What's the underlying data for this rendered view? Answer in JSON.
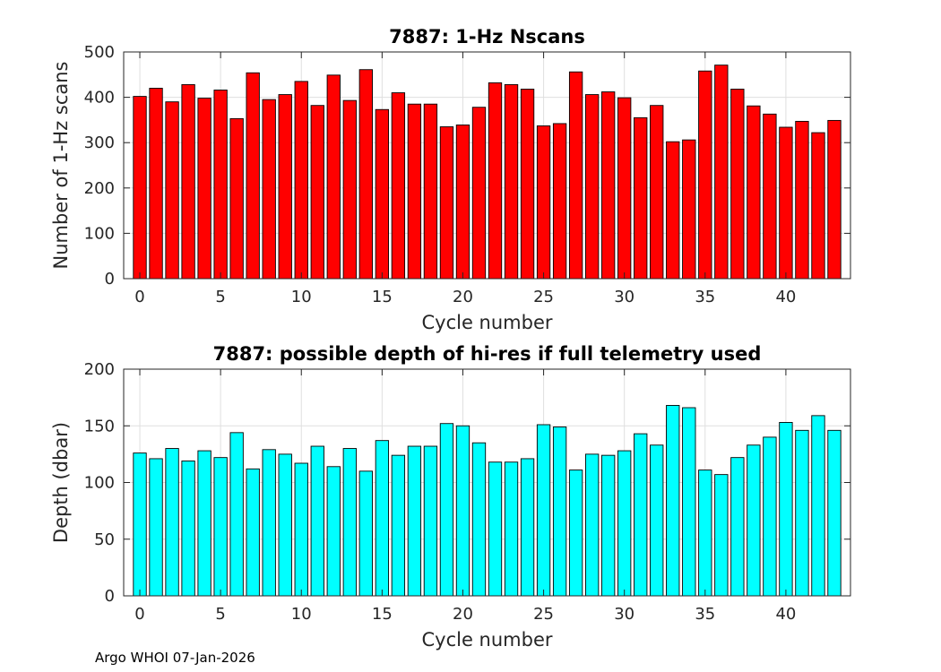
{
  "chart_data": [
    {
      "type": "bar",
      "title": "7887: 1-Hz Nscans",
      "xlabel": "Cycle number",
      "ylabel": "Number of 1-Hz scans",
      "ylim": [
        0,
        500
      ],
      "xlim": [
        -1,
        44
      ],
      "grid": true,
      "bar_color": "#ff0000",
      "yticks": [
        "0",
        "100",
        "200",
        "300",
        "400",
        "500"
      ],
      "xticks": [
        "0",
        "5",
        "10",
        "15",
        "20",
        "25",
        "30",
        "35",
        "40"
      ],
      "x": [
        0,
        1,
        2,
        3,
        4,
        5,
        6,
        7,
        8,
        9,
        10,
        11,
        12,
        13,
        14,
        15,
        16,
        17,
        18,
        19,
        20,
        21,
        22,
        23,
        24,
        25,
        26,
        27,
        28,
        29,
        30,
        31,
        32,
        33,
        34,
        35,
        36,
        37,
        38,
        39,
        40,
        41,
        42,
        43
      ],
      "values": [
        402,
        420,
        390,
        428,
        398,
        416,
        353,
        454,
        395,
        406,
        435,
        382,
        449,
        393,
        461,
        373,
        410,
        385,
        385,
        335,
        339,
        378,
        432,
        428,
        418,
        337,
        342,
        456,
        406,
        412,
        399,
        355,
        382,
        302,
        306,
        458,
        471,
        418,
        381,
        363,
        334,
        347,
        322,
        349
      ]
    },
    {
      "type": "bar",
      "title": "7887: possible depth of hi-res if full telemetry used",
      "xlabel": "Cycle number",
      "ylabel": "Depth (dbar)",
      "ylim": [
        0,
        200
      ],
      "xlim": [
        -1,
        44
      ],
      "grid": true,
      "bar_color": "#00ffff",
      "yticks": [
        "0",
        "50",
        "100",
        "150",
        "200"
      ],
      "xticks": [
        "0",
        "5",
        "10",
        "15",
        "20",
        "25",
        "30",
        "35",
        "40"
      ],
      "x": [
        0,
        1,
        2,
        3,
        4,
        5,
        6,
        7,
        8,
        9,
        10,
        11,
        12,
        13,
        14,
        15,
        16,
        17,
        18,
        19,
        20,
        21,
        22,
        23,
        24,
        25,
        26,
        27,
        28,
        29,
        30,
        31,
        32,
        33,
        34,
        35,
        36,
        37,
        38,
        39,
        40,
        41,
        42,
        43
      ],
      "values": [
        126,
        121,
        130,
        119,
        128,
        122,
        144,
        112,
        129,
        125,
        117,
        132,
        114,
        130,
        110,
        137,
        124,
        132,
        132,
        152,
        150,
        135,
        118,
        118,
        121,
        151,
        149,
        111,
        125,
        124,
        128,
        143,
        133,
        168,
        166,
        111,
        107,
        122,
        133,
        140,
        153,
        146,
        159,
        146
      ]
    }
  ],
  "footer": "Argo WHOI 07-Jan-2026"
}
